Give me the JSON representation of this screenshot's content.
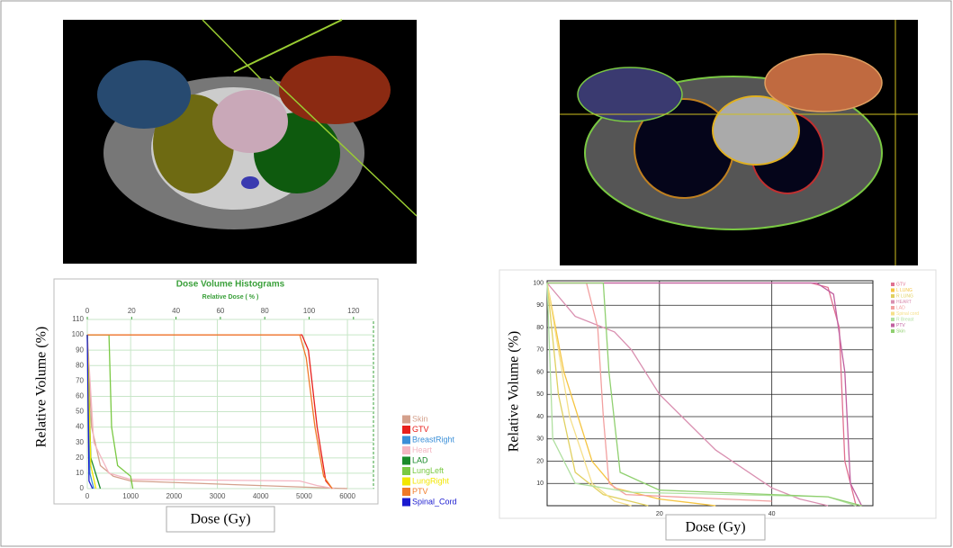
{
  "chart_data": [
    {
      "type": "line",
      "title": "Dose Volume Histograms",
      "x2label": "Relative Dose ( % )",
      "xlabel": "Dose (Gy)",
      "ylabel": "Relative Volume (%)",
      "xlim": [
        0,
        6600
      ],
      "xticks": [
        0,
        1000,
        2000,
        3000,
        4000,
        5000,
        6000
      ],
      "x2lim": [
        0,
        129
      ],
      "x2ticks": [
        0,
        20,
        40,
        60,
        80,
        100,
        120
      ],
      "ylim": [
        0,
        110
      ],
      "yticks": [
        0,
        10,
        20,
        30,
        40,
        50,
        60,
        70,
        80,
        90,
        100,
        110
      ],
      "grid": true,
      "series": [
        {
          "name": "Skin",
          "color": "#d4a08c",
          "x": [
            0,
            100,
            300,
            600,
            1000,
            6000
          ],
          "values": [
            100,
            40,
            15,
            8,
            5,
            0
          ]
        },
        {
          "name": "GTV",
          "color": "#e8201c",
          "x": [
            0,
            4950,
            5100,
            5300,
            5500,
            5650
          ],
          "values": [
            100,
            100,
            90,
            40,
            5,
            0
          ]
        },
        {
          "name": "BreastRight",
          "color": "#3a8fd8",
          "x": [
            0,
            60,
            150
          ],
          "values": [
            100,
            10,
            0
          ]
        },
        {
          "name": "Heart",
          "color": "#f4b6c2",
          "x": [
            0,
            150,
            500,
            1000,
            4900,
            5300,
            5700
          ],
          "values": [
            100,
            30,
            10,
            6,
            5,
            2,
            0
          ]
        },
        {
          "name": "LAD",
          "color": "#1a8a2a",
          "x": [
            0,
            80,
            300
          ],
          "values": [
            100,
            20,
            0
          ]
        },
        {
          "name": "LungLeft",
          "color": "#7ac943",
          "x": [
            0,
            500,
            560,
            700,
            1000,
            1050
          ],
          "values": [
            100,
            100,
            40,
            15,
            8,
            0
          ]
        },
        {
          "name": "LungRight",
          "color": "#f2e600",
          "x": [
            0,
            80,
            200
          ],
          "values": [
            100,
            15,
            0
          ]
        },
        {
          "name": "PTV",
          "color": "#f07a28",
          "x": [
            0,
            4900,
            5050,
            5250,
            5450,
            5650
          ],
          "values": [
            100,
            100,
            85,
            40,
            8,
            0
          ]
        },
        {
          "name": "Spinal_Cord",
          "color": "#1a1ad0",
          "x": [
            0,
            40,
            120
          ],
          "values": [
            100,
            5,
            0
          ]
        }
      ]
    },
    {
      "type": "line",
      "xlabel": "Dose (Gy)",
      "ylabel": "Relative Volume (%)",
      "xlim": [
        0,
        58
      ],
      "xticks": [
        20,
        40
      ],
      "ylim": [
        0,
        101
      ],
      "yticks": [
        10,
        20,
        30,
        40,
        50,
        60,
        70,
        80,
        90,
        100
      ],
      "grid": true,
      "series": [
        {
          "name": "GTV",
          "color": "#e07090",
          "x": [
            0,
            47,
            50,
            52,
            53,
            55
          ],
          "values": [
            100,
            100,
            98,
            80,
            20,
            0
          ]
        },
        {
          "name": "L LUNG",
          "color": "#f5c542",
          "x": [
            0,
            3,
            8,
            12,
            20,
            30
          ],
          "values": [
            100,
            60,
            20,
            8,
            3,
            0
          ]
        },
        {
          "name": "R LUNG",
          "color": "#e0d060",
          "x": [
            0,
            2,
            5,
            10,
            18
          ],
          "values": [
            100,
            50,
            15,
            5,
            0
          ]
        },
        {
          "name": "HEART",
          "color": "#d98fb0",
          "x": [
            0,
            5,
            12,
            15,
            20,
            30,
            40,
            45,
            50
          ],
          "values": [
            100,
            85,
            78,
            70,
            50,
            25,
            8,
            3,
            0
          ]
        },
        {
          "name": "LAD",
          "color": "#f2a0a0",
          "x": [
            0,
            7,
            9,
            10,
            11,
            14,
            40
          ],
          "values": [
            100,
            100,
            80,
            40,
            10,
            5,
            2
          ]
        },
        {
          "name": "Spinal cord",
          "color": "#f6e08a",
          "x": [
            0,
            4,
            8,
            12,
            15
          ],
          "values": [
            100,
            40,
            10,
            2,
            0
          ]
        },
        {
          "name": "R Breast",
          "color": "#b0e0a0",
          "x": [
            0,
            1,
            5,
            15,
            50,
            55
          ],
          "values": [
            100,
            30,
            10,
            6,
            4,
            0
          ]
        },
        {
          "name": "PTV",
          "color": "#c060a0",
          "x": [
            0,
            48,
            51,
            53,
            54,
            56
          ],
          "values": [
            100,
            100,
            95,
            60,
            10,
            0
          ]
        },
        {
          "name": "Skin",
          "color": "#90d070",
          "x": [
            0,
            10,
            11,
            13,
            20,
            50,
            56
          ],
          "values": [
            100,
            100,
            60,
            15,
            7,
            4,
            0
          ]
        }
      ]
    }
  ]
}
